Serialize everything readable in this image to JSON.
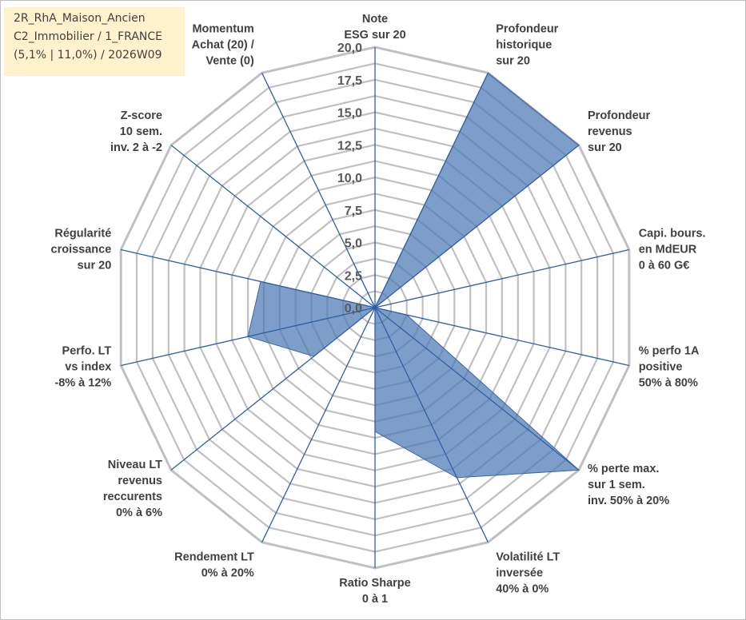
{
  "info_box": {
    "line1": "2R_RhA_Maison_Ancien",
    "line2": "C2_Immobilier / 1_FRANCE",
    "line3": "(5,1% | 11,0%) / 2026W09"
  },
  "chart_data": {
    "type": "radar",
    "rmin": 0,
    "rmax": 20,
    "ticks": [
      "0,0",
      "2,5",
      "5,0",
      "7,5",
      "10,0",
      "12,5",
      "15,0",
      "17,5",
      "20,0"
    ],
    "tick_values": [
      0,
      2.5,
      5,
      7.5,
      10,
      12.5,
      15,
      17.5,
      20
    ],
    "grid": true,
    "categories": [
      [
        "Note",
        "ESG sur 20"
      ],
      [
        "Profondeur",
        "historique",
        "sur 20"
      ],
      [
        "Profondeur",
        "revenus",
        "sur 20"
      ],
      [
        "Capi. bours.",
        "en MdEUR",
        "0 à 60 G€"
      ],
      [
        "% perfo 1A",
        "positive",
        "50% à 80%"
      ],
      [
        "% perte max.",
        "sur 1 sem.",
        "inv. 50% à 20%"
      ],
      [
        "Volatilité LT",
        "inversée",
        "40% à 0%"
      ],
      [
        "Ratio Sharpe",
        "0 à 1"
      ],
      [
        "Rendement LT",
        "0% à 20%"
      ],
      [
        "Niveau LT",
        "revenus",
        "reccurents",
        "0% à 6%"
      ],
      [
        "Perfo. LT",
        "vs index",
        "-8% à 12%"
      ],
      [
        "Régularité",
        "croissance",
        "sur 20"
      ],
      [
        "Z-score",
        "10 sem.",
        "inv. 2 à -2"
      ],
      [
        "Momentum",
        "Achat (20) /",
        "Vente (0)"
      ]
    ],
    "series": [
      {
        "values": [
          0,
          20,
          20,
          0,
          2.5,
          20,
          14.5,
          9.5,
          0,
          6,
          10,
          9,
          0,
          4.2
        ],
        "color": "#4a78b4",
        "fill_opacity": 0.72
      }
    ],
    "colors": {
      "grid": "#c0c0c0",
      "spokes": "#2f5ea8",
      "area": "#4a78b4",
      "outline": "#3e66a0"
    }
  }
}
